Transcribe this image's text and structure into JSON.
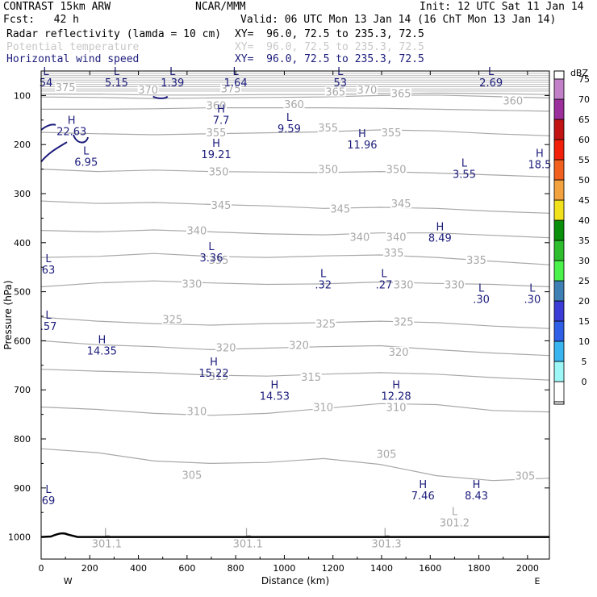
{
  "header": {
    "title": "CONTRAST 15km ARW",
    "forecast": "Fcst:   42 h",
    "center": "NCAR/MMM",
    "init": "Init: 12 UTC Sat 11 Jan 14",
    "valid": "Valid: 06 UTC Mon 13 Jan 14 (16 ChT Mon 13 Jan 14)",
    "fields": [
      {
        "name": "Radar reflectivity (lamda = 10 cm)",
        "xy": "XY=  96.0, 72.5 to 235.3, 72.5",
        "color": "#000000"
      },
      {
        "name": "Potential temperature",
        "xy": "XY=  96.0, 72.5 to 235.3, 72.5",
        "color": "#c8c8c8"
      },
      {
        "name": "Horizontal wind speed",
        "xy": "XY=  96.0, 72.5 to 235.3, 72.5",
        "color": "#1c1c7c"
      }
    ]
  },
  "chart_data": {
    "type": "cross-section contour",
    "xlabel": "Distance (km)",
    "ylabel": "Pressure (hPa)",
    "xlim": [
      0,
      2090
    ],
    "ylim": [
      1045,
      50
    ],
    "x_ticks": [
      "0",
      "200",
      "400",
      "600",
      "800",
      "1000",
      "1200",
      "1400",
      "1600",
      "1800",
      "2000"
    ],
    "y_ticks": [
      "100",
      "200",
      "300",
      "400",
      "500",
      "600",
      "700",
      "800",
      "900",
      "1000"
    ],
    "endpoints": {
      "left": "W",
      "right": "E"
    },
    "colorbar": {
      "unit": "dBZ",
      "levels": [
        "0",
        "5",
        "10",
        "15",
        "20",
        "25",
        "30",
        "35",
        "40",
        "45",
        "50",
        "55",
        "60",
        "65",
        "70",
        "75"
      ],
      "colors": [
        "#ffffff",
        "#9ef7f7",
        "#3ab5ef",
        "#2f5fe6",
        "#3b3bd6",
        "#3e7fb4",
        "#4cf24c",
        "#2dbd2d",
        "#0a8f0a",
        "#f2e21e",
        "#f2a23e",
        "#f26020",
        "#f21f0b",
        "#c31414",
        "#9b2f9b",
        "#c280c8"
      ]
    },
    "theta_contours": [
      {
        "value": 305,
        "label": "305",
        "p": [
          820,
          828,
          845,
          850,
          848,
          840,
          852,
          875,
          885,
          880
        ]
      },
      {
        "value": 310,
        "label": "310",
        "p": [
          735,
          740,
          748,
          752,
          748,
          738,
          728,
          730,
          742,
          745
        ]
      },
      {
        "value": 315,
        "label": "315",
        "p": [
          658,
          662,
          665,
          670,
          672,
          668,
          665,
          668,
          675,
          680
        ]
      },
      {
        "value": 320,
        "label": "320",
        "p": [
          600,
          608,
          612,
          618,
          615,
          612,
          610,
          618,
          625,
          630
        ]
      },
      {
        "value": 325,
        "label": "325",
        "p": [
          552,
          560,
          565,
          568,
          565,
          563,
          560,
          563,
          570,
          575
        ]
      },
      {
        "value": 330,
        "label": "330",
        "p": [
          490,
          482,
          478,
          482,
          485,
          484,
          480,
          483,
          485,
          490
        ]
      },
      {
        "value": 335,
        "label": "335",
        "p": [
          430,
          428,
          422,
          428,
          430,
          427,
          425,
          430,
          438,
          445
        ]
      },
      {
        "value": 340,
        "label": "340",
        "p": [
          375,
          378,
          374,
          378,
          382,
          384,
          380,
          380,
          385,
          390
        ]
      },
      {
        "value": 345,
        "label": "345",
        "p": [
          315,
          320,
          318,
          322,
          325,
          330,
          328,
          330,
          336,
          340
        ]
      },
      {
        "value": 350,
        "label": "350",
        "p": [
          250,
          255,
          252,
          255,
          256,
          257,
          255,
          258,
          262,
          266
        ]
      },
      {
        "value": 355,
        "label": "355",
        "p": [
          175,
          178,
          180,
          178,
          176,
          174,
          170,
          172,
          178,
          182
        ]
      },
      {
        "value": 360,
        "label": "360",
        "p": [
          128,
          128,
          127,
          125,
          125,
          125,
          126,
          128,
          130,
          132
        ]
      },
      {
        "value": 365,
        "label": "365",
        "p": [
          103,
          104,
          106,
          105,
          104,
          103,
          100,
          99,
          102,
          105
        ]
      },
      {
        "value": 370,
        "label": "370",
        "p": [
          97,
          97,
          99,
          99,
          98,
          98,
          96,
          95,
          96,
          98
        ]
      }
    ],
    "theta_labels": [
      {
        "text": "305",
        "x": 620,
        "p": 878
      },
      {
        "text": "305",
        "x": 1420,
        "p": 835
      },
      {
        "text": "305",
        "x": 1990,
        "p": 880
      },
      {
        "text": "310",
        "x": 640,
        "p": 748
      },
      {
        "text": "310",
        "x": 1160,
        "p": 740
      },
      {
        "text": "310",
        "x": 1460,
        "p": 740
      },
      {
        "text": "315",
        "x": 730,
        "p": 677
      },
      {
        "text": "315",
        "x": 1110,
        "p": 678
      },
      {
        "text": "320",
        "x": 760,
        "p": 618
      },
      {
        "text": "320",
        "x": 1060,
        "p": 613
      },
      {
        "text": "320",
        "x": 1470,
        "p": 627
      },
      {
        "text": "325",
        "x": 540,
        "p": 561
      },
      {
        "text": "325",
        "x": 1170,
        "p": 570
      },
      {
        "text": "325",
        "x": 1490,
        "p": 566
      },
      {
        "text": "330",
        "x": 620,
        "p": 488
      },
      {
        "text": "330",
        "x": 1490,
        "p": 490
      },
      {
        "text": "330",
        "x": 1700,
        "p": 490
      },
      {
        "text": "335",
        "x": 730,
        "p": 440
      },
      {
        "text": "335",
        "x": 1450,
        "p": 425
      },
      {
        "text": "335",
        "x": 1790,
        "p": 440
      },
      {
        "text": "340",
        "x": 640,
        "p": 380
      },
      {
        "text": "340",
        "x": 1310,
        "p": 393
      },
      {
        "text": "340",
        "x": 1460,
        "p": 393
      },
      {
        "text": "345",
        "x": 740,
        "p": 328
      },
      {
        "text": "345",
        "x": 1230,
        "p": 335
      },
      {
        "text": "345",
        "x": 1480,
        "p": 325
      },
      {
        "text": "350",
        "x": 730,
        "p": 260
      },
      {
        "text": "350",
        "x": 1180,
        "p": 255
      },
      {
        "text": "350",
        "x": 1460,
        "p": 255
      },
      {
        "text": "355",
        "x": 720,
        "p": 180
      },
      {
        "text": "355",
        "x": 1180,
        "p": 170
      },
      {
        "text": "355",
        "x": 1440,
        "p": 180
      },
      {
        "text": "360",
        "x": 720,
        "p": 125
      },
      {
        "text": "360",
        "x": 1040,
        "p": 122
      },
      {
        "text": "360",
        "x": 1940,
        "p": 115
      },
      {
        "text": "365",
        "x": 1480,
        "p": 100
      },
      {
        "text": "365",
        "x": 1210,
        "p": 97
      },
      {
        "text": "370",
        "x": 440,
        "p": 93
      },
      {
        "text": "370",
        "x": 1340,
        "p": 93
      },
      {
        "text": "375",
        "x": 100,
        "p": 88
      },
      {
        "text": "375",
        "x": 780,
        "p": 90
      }
    ],
    "wind_labels": [
      {
        "t": "L",
        "v": "54",
        "x": 20,
        "p": 58
      },
      {
        "t": "L",
        "v": "5.15",
        "x": 310,
        "p": 58
      },
      {
        "t": "L",
        "v": "1.39",
        "x": 540,
        "p": 58
      },
      {
        "t": "L",
        "v": "1.64",
        "x": 800,
        "p": 58
      },
      {
        "t": "L",
        "v": "53",
        "x": 1230,
        "p": 58
      },
      {
        "t": "L",
        "v": "2.69",
        "x": 1850,
        "p": 58
      },
      {
        "t": "H",
        "v": "22.63",
        "x": 125,
        "p": 158
      },
      {
        "t": "H",
        "v": "7.7",
        "x": 740,
        "p": 135
      },
      {
        "t": "L",
        "v": "9.59",
        "x": 1020,
        "p": 152
      },
      {
        "t": "H",
        "v": "11.96",
        "x": 1320,
        "p": 185
      },
      {
        "t": "L",
        "v": "6.95",
        "x": 185,
        "p": 220
      },
      {
        "t": "H",
        "v": "19.21",
        "x": 720,
        "p": 205
      },
      {
        "t": "L",
        "v": "3.55",
        "x": 1740,
        "p": 245
      },
      {
        "t": "H",
        "v": "18.5",
        "x": 2050,
        "p": 225
      },
      {
        "t": "H",
        "v": "8.49",
        "x": 1640,
        "p": 375
      },
      {
        "t": "L",
        "v": "3.36",
        "x": 700,
        "p": 415
      },
      {
        "t": "L",
        "v": "63",
        "x": 30,
        "p": 440
      },
      {
        "t": "L",
        "v": ".32",
        "x": 1160,
        "p": 470
      },
      {
        "t": "L",
        "v": ".27",
        "x": 1410,
        "p": 470
      },
      {
        "t": "L",
        "v": ".30",
        "x": 1810,
        "p": 500
      },
      {
        "t": "L",
        "v": ".30",
        "x": 2020,
        "p": 500
      },
      {
        "t": "L",
        "v": ".57",
        "x": 30,
        "p": 555
      },
      {
        "t": "H",
        "v": "14.35",
        "x": 250,
        "p": 605
      },
      {
        "t": "H",
        "v": "15.22",
        "x": 710,
        "p": 650
      },
      {
        "t": "H",
        "v": "14.53",
        "x": 960,
        "p": 697
      },
      {
        "t": "H",
        "v": "12.28",
        "x": 1460,
        "p": 697
      },
      {
        "t": "H",
        "v": "7.46",
        "x": 1570,
        "p": 900
      },
      {
        "t": "H",
        "v": "8.43",
        "x": 1790,
        "p": 900
      },
      {
        "t": "L",
        "v": "69",
        "x": 30,
        "p": 910
      }
    ],
    "theta_lows": [
      {
        "t": "L",
        "v": "301.1",
        "x": 270,
        "p": 998
      },
      {
        "t": "L",
        "v": "301.1",
        "x": 850,
        "p": 998
      },
      {
        "t": "L",
        "v": "301.3",
        "x": 1420,
        "p": 998
      },
      {
        "t": "L",
        "v": "301.2",
        "x": 1700,
        "p": 955
      }
    ]
  }
}
